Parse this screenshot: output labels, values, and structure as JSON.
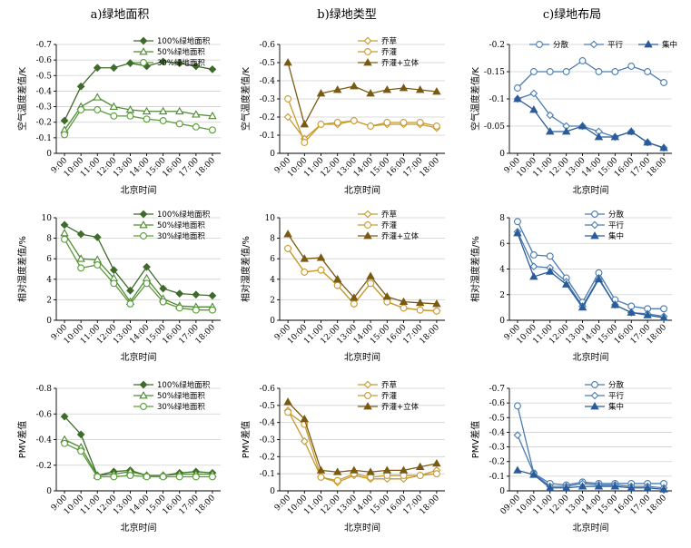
{
  "column_titles": [
    "a)绿地面积",
    "b)绿地类型",
    "c)绿地布局"
  ],
  "colors": {
    "dark_green": "#3f6b2a",
    "mid_green": "#4e8a32",
    "light_green": "#5a9a3a",
    "brown_gold": "#c89a30",
    "dark_brown": "#7a5a10",
    "blue": "#4a7bb0",
    "dark_blue": "#2a5b9a"
  },
  "chart_data": [
    {
      "id": "a1",
      "type": "line",
      "col": 0,
      "row": 0,
      "categories": [
        "9:00",
        "10:00",
        "11:00",
        "12:00",
        "13:00",
        "14:00",
        "15:00",
        "16:00",
        "17:00",
        "18:00"
      ],
      "ylabel": "空气温度差值/K",
      "xlabel": "北京时间",
      "ylim": [
        0,
        -0.7
      ],
      "yticks": [
        0,
        -0.1,
        -0.2,
        -0.3,
        -0.4,
        -0.5,
        -0.6,
        -0.7
      ],
      "ytick_labels": [
        "0",
        "-0.1",
        "-0.2",
        "-0.3",
        "-0.4",
        "-0.5",
        "-0.6",
        "-0.7"
      ],
      "legend_pos": "top-right",
      "series": [
        {
          "name": "100%绿地面积",
          "marker": "diamond",
          "fill": "filled",
          "color": "#3f6b2a",
          "values": [
            -0.21,
            -0.43,
            -0.55,
            -0.55,
            -0.58,
            -0.56,
            -0.59,
            -0.58,
            -0.56,
            -0.54
          ]
        },
        {
          "name": "50%绿地面积",
          "marker": "triangle",
          "fill": "open",
          "color": "#4e8a32",
          "values": [
            -0.15,
            -0.3,
            -0.36,
            -0.3,
            -0.28,
            -0.27,
            -0.27,
            -0.27,
            -0.25,
            -0.24
          ]
        },
        {
          "name": "30%绿地面积",
          "marker": "circle",
          "fill": "open",
          "color": "#5a9a3a",
          "values": [
            -0.12,
            -0.28,
            -0.28,
            -0.24,
            -0.24,
            -0.22,
            -0.21,
            -0.19,
            -0.17,
            -0.15
          ]
        }
      ]
    },
    {
      "id": "b1",
      "type": "line",
      "col": 1,
      "row": 0,
      "categories": [
        "9:00",
        "10:00",
        "11:00",
        "12:00",
        "13:00",
        "14:00",
        "15:00",
        "16:00",
        "17:00",
        "18:00"
      ],
      "ylabel": "空气温度差值/K",
      "xlabel": "北京时间",
      "ylim": [
        0,
        -0.6
      ],
      "yticks": [
        0,
        -0.1,
        -0.2,
        -0.3,
        -0.4,
        -0.5,
        -0.6
      ],
      "ytick_labels": [
        "0",
        "-0.1",
        "-0.2",
        "-0.3",
        "-0.4",
        "-0.5",
        "-0.6"
      ],
      "legend_pos": "top-right",
      "series": [
        {
          "name": "乔草",
          "marker": "diamond",
          "fill": "open",
          "color": "#c89a30",
          "values": [
            -0.2,
            -0.08,
            -0.16,
            -0.16,
            -0.18,
            -0.15,
            -0.16,
            -0.16,
            -0.16,
            -0.14
          ]
        },
        {
          "name": "乔灌",
          "marker": "circle",
          "fill": "open",
          "color": "#c89a30",
          "values": [
            -0.3,
            -0.06,
            -0.16,
            -0.17,
            -0.18,
            -0.15,
            -0.17,
            -0.17,
            -0.17,
            -0.15
          ]
        },
        {
          "name": "乔灌+立体",
          "marker": "triangle",
          "fill": "filled",
          "color": "#7a5a10",
          "values": [
            -0.5,
            -0.16,
            -0.33,
            -0.35,
            -0.37,
            -0.33,
            -0.35,
            -0.36,
            -0.35,
            -0.34
          ]
        }
      ]
    },
    {
      "id": "c1",
      "type": "line",
      "col": 2,
      "row": 0,
      "categories": [
        "9:00",
        "10:00",
        "11:00",
        "12:00",
        "13:00",
        "14:00",
        "15:00",
        "16:00",
        "17:00",
        "18:00"
      ],
      "ylabel": "空气温度差值/K",
      "xlabel": "北京时间",
      "ylim": [
        0,
        -0.2
      ],
      "yticks": [
        0,
        -0.05,
        -0.1,
        -0.15,
        -0.2
      ],
      "ytick_labels": [
        "0",
        "-0.05",
        "-0.1",
        "-0.15",
        "-0.2"
      ],
      "legend_pos": "top",
      "series": [
        {
          "name": "分散",
          "marker": "circle",
          "fill": "open",
          "color": "#4a7bb0",
          "values": [
            -0.12,
            -0.15,
            -0.15,
            -0.15,
            -0.17,
            -0.15,
            -0.15,
            -0.16,
            -0.15,
            -0.13
          ]
        },
        {
          "name": "平行",
          "marker": "diamond",
          "fill": "open",
          "color": "#4a7bb0",
          "values": [
            -0.1,
            -0.11,
            -0.07,
            -0.05,
            -0.05,
            -0.04,
            -0.03,
            -0.04,
            -0.02,
            -0.01
          ]
        },
        {
          "name": "集中",
          "marker": "triangle",
          "fill": "filled",
          "color": "#2a5b9a",
          "values": [
            -0.1,
            -0.08,
            -0.04,
            -0.04,
            -0.05,
            -0.03,
            -0.03,
            -0.04,
            -0.02,
            -0.01
          ]
        }
      ]
    },
    {
      "id": "a2",
      "type": "line",
      "col": 0,
      "row": 1,
      "categories": [
        "9:00",
        "10:00",
        "11:00",
        "12:00",
        "13:00",
        "14:00",
        "15:00",
        "16:00",
        "17:00",
        "18:00"
      ],
      "ylabel": "相对湿度差值/%",
      "xlabel": "北京时间",
      "ylim": [
        0,
        10
      ],
      "yticks": [
        0,
        2,
        4,
        6,
        8,
        10
      ],
      "ytick_labels": [
        "0",
        "2",
        "4",
        "6",
        "8",
        "10"
      ],
      "legend_pos": "top-right",
      "series": [
        {
          "name": "100%绿地面积",
          "marker": "diamond",
          "fill": "filled",
          "color": "#3f6b2a",
          "values": [
            9.3,
            8.4,
            8.1,
            4.9,
            2.9,
            5.2,
            3.1,
            2.6,
            2.5,
            2.4
          ]
        },
        {
          "name": "50%绿地面积",
          "marker": "triangle",
          "fill": "open",
          "color": "#4e8a32",
          "values": [
            8.5,
            6.0,
            5.9,
            4.1,
            1.8,
            4.1,
            2.1,
            1.4,
            1.3,
            1.3
          ]
        },
        {
          "name": "30%绿地面积",
          "marker": "circle",
          "fill": "open",
          "color": "#5a9a3a",
          "values": [
            7.9,
            5.1,
            5.4,
            3.6,
            1.6,
            3.6,
            1.8,
            1.2,
            1.0,
            1.0
          ]
        }
      ]
    },
    {
      "id": "b2",
      "type": "line",
      "col": 1,
      "row": 1,
      "categories": [
        "9:00",
        "10:00",
        "11:00",
        "12:00",
        "13:00",
        "14:00",
        "15:00",
        "16:00",
        "17:00",
        "18:00"
      ],
      "ylabel": "相对湿度差值/%",
      "xlabel": "北京时间",
      "ylim": [
        0,
        10
      ],
      "yticks": [
        0,
        2,
        4,
        6,
        8,
        10
      ],
      "ytick_labels": [
        "0",
        "2",
        "4",
        "6",
        "8",
        "10"
      ],
      "legend_pos": "top-right",
      "series": [
        {
          "name": "乔草",
          "marker": "diamond",
          "fill": "open",
          "color": "#c89a30",
          "values": [
            7.0,
            4.7,
            4.9,
            3.4,
            1.6,
            3.6,
            1.8,
            1.2,
            1.0,
            0.9
          ]
        },
        {
          "name": "乔灌",
          "marker": "circle",
          "fill": "open",
          "color": "#c89a30",
          "values": [
            7.0,
            4.7,
            4.9,
            3.4,
            1.6,
            3.6,
            1.8,
            1.2,
            1.0,
            0.9
          ]
        },
        {
          "name": "乔灌+立体",
          "marker": "triangle",
          "fill": "filled",
          "color": "#7a5a10",
          "values": [
            8.4,
            6.0,
            6.1,
            4.0,
            2.2,
            4.3,
            2.3,
            1.8,
            1.7,
            1.6
          ]
        }
      ]
    },
    {
      "id": "c2",
      "type": "line",
      "col": 2,
      "row": 1,
      "categories": [
        "9:00",
        "10:00",
        "11:00",
        "12:00",
        "13:00",
        "14:00",
        "15:00",
        "16:00",
        "17:00",
        "18:00"
      ],
      "ylabel": "相对湿度差值/%",
      "xlabel": "北京时间",
      "ylim": [
        0,
        8
      ],
      "yticks": [
        0,
        2,
        4,
        6,
        8
      ],
      "ytick_labels": [
        "0",
        "2",
        "4",
        "6",
        "8"
      ],
      "legend_pos": "top-right",
      "series": [
        {
          "name": "分散",
          "marker": "circle",
          "fill": "open",
          "color": "#4a7bb0",
          "values": [
            7.7,
            5.1,
            5.0,
            3.3,
            1.4,
            3.7,
            1.6,
            1.1,
            0.9,
            0.9
          ]
        },
        {
          "name": "平行",
          "marker": "diamond",
          "fill": "open",
          "color": "#4a7bb0",
          "values": [
            6.9,
            4.2,
            4.1,
            3.0,
            1.1,
            3.3,
            1.2,
            0.6,
            0.5,
            0.3
          ]
        },
        {
          "name": "集中",
          "marker": "triangle",
          "fill": "filled",
          "color": "#2a5b9a",
          "values": [
            6.8,
            3.4,
            3.8,
            2.8,
            1.0,
            3.2,
            1.2,
            0.6,
            0.4,
            0.2
          ]
        }
      ]
    },
    {
      "id": "a3",
      "type": "line",
      "col": 0,
      "row": 2,
      "categories": [
        "9:00",
        "10:00",
        "11:00",
        "12:00",
        "13:00",
        "14:00",
        "15:00",
        "16:00",
        "17:00",
        "18:00"
      ],
      "ylabel": "PMV差值",
      "xlabel": "北京时间",
      "ylim": [
        0,
        -0.8
      ],
      "yticks": [
        0,
        -0.2,
        -0.4,
        -0.6,
        -0.8
      ],
      "ytick_labels": [
        "0",
        "-0.2",
        "-0.4",
        "-0.6",
        "-0.8"
      ],
      "legend_pos": "top-right",
      "series": [
        {
          "name": "100%绿地面积",
          "marker": "diamond",
          "fill": "filled",
          "color": "#3f6b2a",
          "values": [
            -0.58,
            -0.44,
            -0.12,
            -0.15,
            -0.16,
            -0.12,
            -0.12,
            -0.14,
            -0.15,
            -0.14
          ]
        },
        {
          "name": "50%绿地面积",
          "marker": "triangle",
          "fill": "open",
          "color": "#4e8a32",
          "values": [
            -0.4,
            -0.34,
            -0.12,
            -0.13,
            -0.15,
            -0.12,
            -0.12,
            -0.13,
            -0.13,
            -0.13
          ]
        },
        {
          "name": "30%绿地面积",
          "marker": "circle",
          "fill": "open",
          "color": "#5a9a3a",
          "values": [
            -0.37,
            -0.31,
            -0.11,
            -0.11,
            -0.12,
            -0.11,
            -0.11,
            -0.11,
            -0.11,
            -0.11
          ]
        }
      ]
    },
    {
      "id": "b3",
      "type": "line",
      "col": 1,
      "row": 2,
      "categories": [
        "9:00",
        "10:00",
        "11:00",
        "12:00",
        "13:00",
        "14:00",
        "15:00",
        "16:00",
        "17:00",
        "18:00"
      ],
      "ylabel": "PMV差值",
      "xlabel": "北京时间",
      "ylim": [
        0,
        -0.6
      ],
      "yticks": [
        0,
        -0.1,
        -0.2,
        -0.3,
        -0.4,
        -0.5,
        -0.6
      ],
      "ytick_labels": [
        "0",
        "-0.1",
        "-0.2",
        "-0.3",
        "-0.4",
        "-0.5",
        "-0.6"
      ],
      "legend_pos": "top-right",
      "series": [
        {
          "name": "乔草",
          "marker": "diamond",
          "fill": "open",
          "color": "#c89a30",
          "values": [
            -0.47,
            -0.29,
            -0.08,
            -0.05,
            -0.09,
            -0.07,
            -0.07,
            -0.07,
            -0.09,
            -0.12
          ]
        },
        {
          "name": "乔灌",
          "marker": "circle",
          "fill": "open",
          "color": "#c89a30",
          "values": [
            -0.46,
            -0.39,
            -0.08,
            -0.06,
            -0.1,
            -0.08,
            -0.09,
            -0.09,
            -0.09,
            -0.1
          ]
        },
        {
          "name": "乔灌+立体",
          "marker": "triangle",
          "fill": "filled",
          "color": "#7a5a10",
          "values": [
            -0.52,
            -0.42,
            -0.12,
            -0.11,
            -0.12,
            -0.11,
            -0.12,
            -0.12,
            -0.14,
            -0.16
          ]
        }
      ]
    },
    {
      "id": "c3",
      "type": "line",
      "col": 2,
      "row": 2,
      "categories": [
        "09:00",
        "10:00",
        "11:00",
        "12:00",
        "13:00",
        "14:00",
        "15:00",
        "16:00",
        "17:00",
        "18:00"
      ],
      "ylabel": "PMV差值",
      "xlabel": "北京时间",
      "ylim": [
        0,
        -0.7
      ],
      "yticks": [
        0,
        -0.1,
        -0.2,
        -0.3,
        -0.4,
        -0.5,
        -0.6,
        -0.7
      ],
      "ytick_labels": [
        "0",
        "-0.1",
        "-0.2",
        "-0.3",
        "-0.4",
        "-0.5",
        "-0.6",
        "-0.7"
      ],
      "legend_pos": "top-right",
      "series": [
        {
          "name": "分散",
          "marker": "circle",
          "fill": "open",
          "color": "#4a7bb0",
          "values": [
            -0.58,
            -0.12,
            -0.05,
            -0.04,
            -0.06,
            -0.05,
            -0.05,
            -0.05,
            -0.05,
            -0.05
          ]
        },
        {
          "name": "平行",
          "marker": "diamond",
          "fill": "open",
          "color": "#4a7bb0",
          "values": [
            -0.38,
            -0.12,
            -0.03,
            -0.03,
            -0.05,
            -0.04,
            -0.04,
            -0.03,
            -0.03,
            -0.02
          ]
        },
        {
          "name": "集中",
          "marker": "triangle",
          "fill": "filled",
          "color": "#2a5b9a",
          "values": [
            -0.14,
            -0.11,
            -0.02,
            -0.02,
            -0.03,
            -0.03,
            -0.03,
            -0.02,
            -0.02,
            -0.01
          ]
        }
      ]
    }
  ]
}
